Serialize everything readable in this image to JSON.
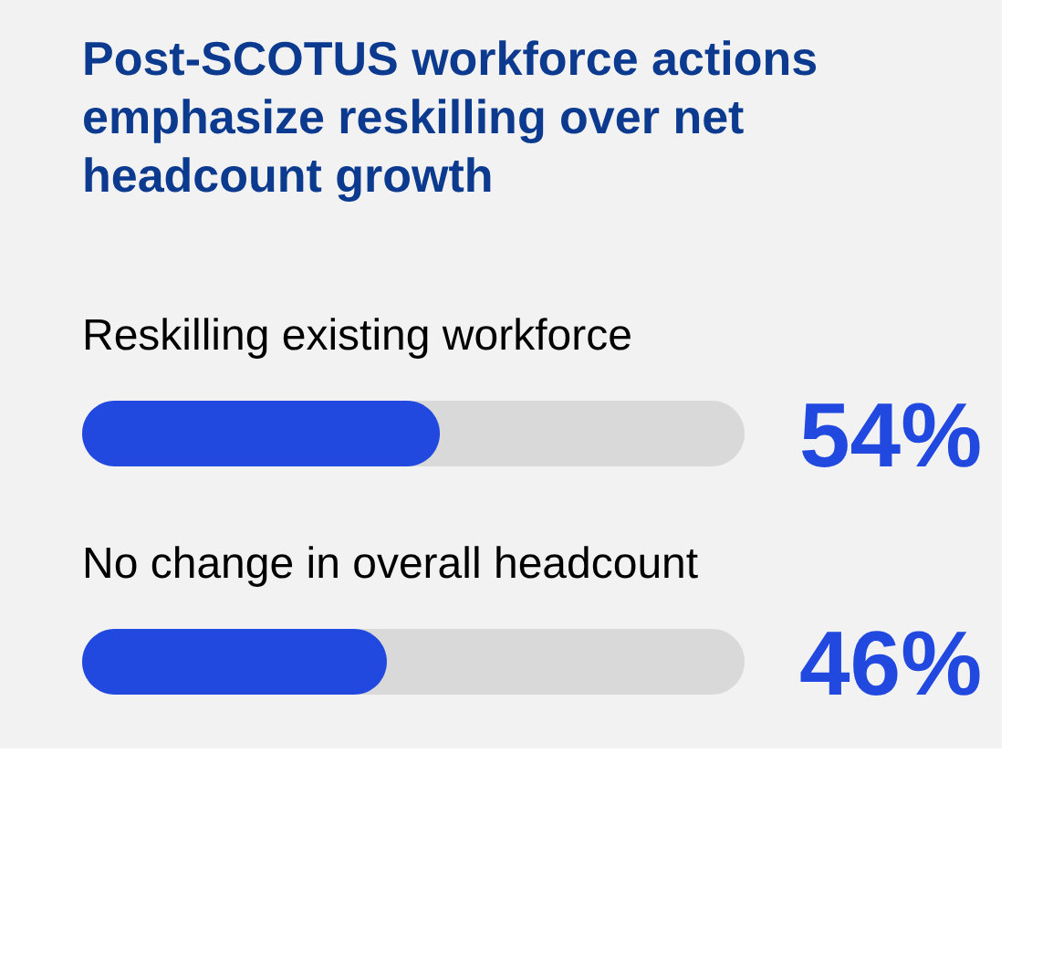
{
  "chart_data": {
    "type": "bar",
    "orientation": "horizontal",
    "title": "Post-SCOTUS workforce actions emphasize reskilling over net headcount growth",
    "categories": [
      "Reskilling existing workforce",
      "No change in overall headcount"
    ],
    "values": [
      54,
      46
    ],
    "color": "#2149e0",
    "value_labels": [
      "54%",
      "46%"
    ],
    "xlim": [
      0,
      100
    ],
    "tick_labels": false
  }
}
